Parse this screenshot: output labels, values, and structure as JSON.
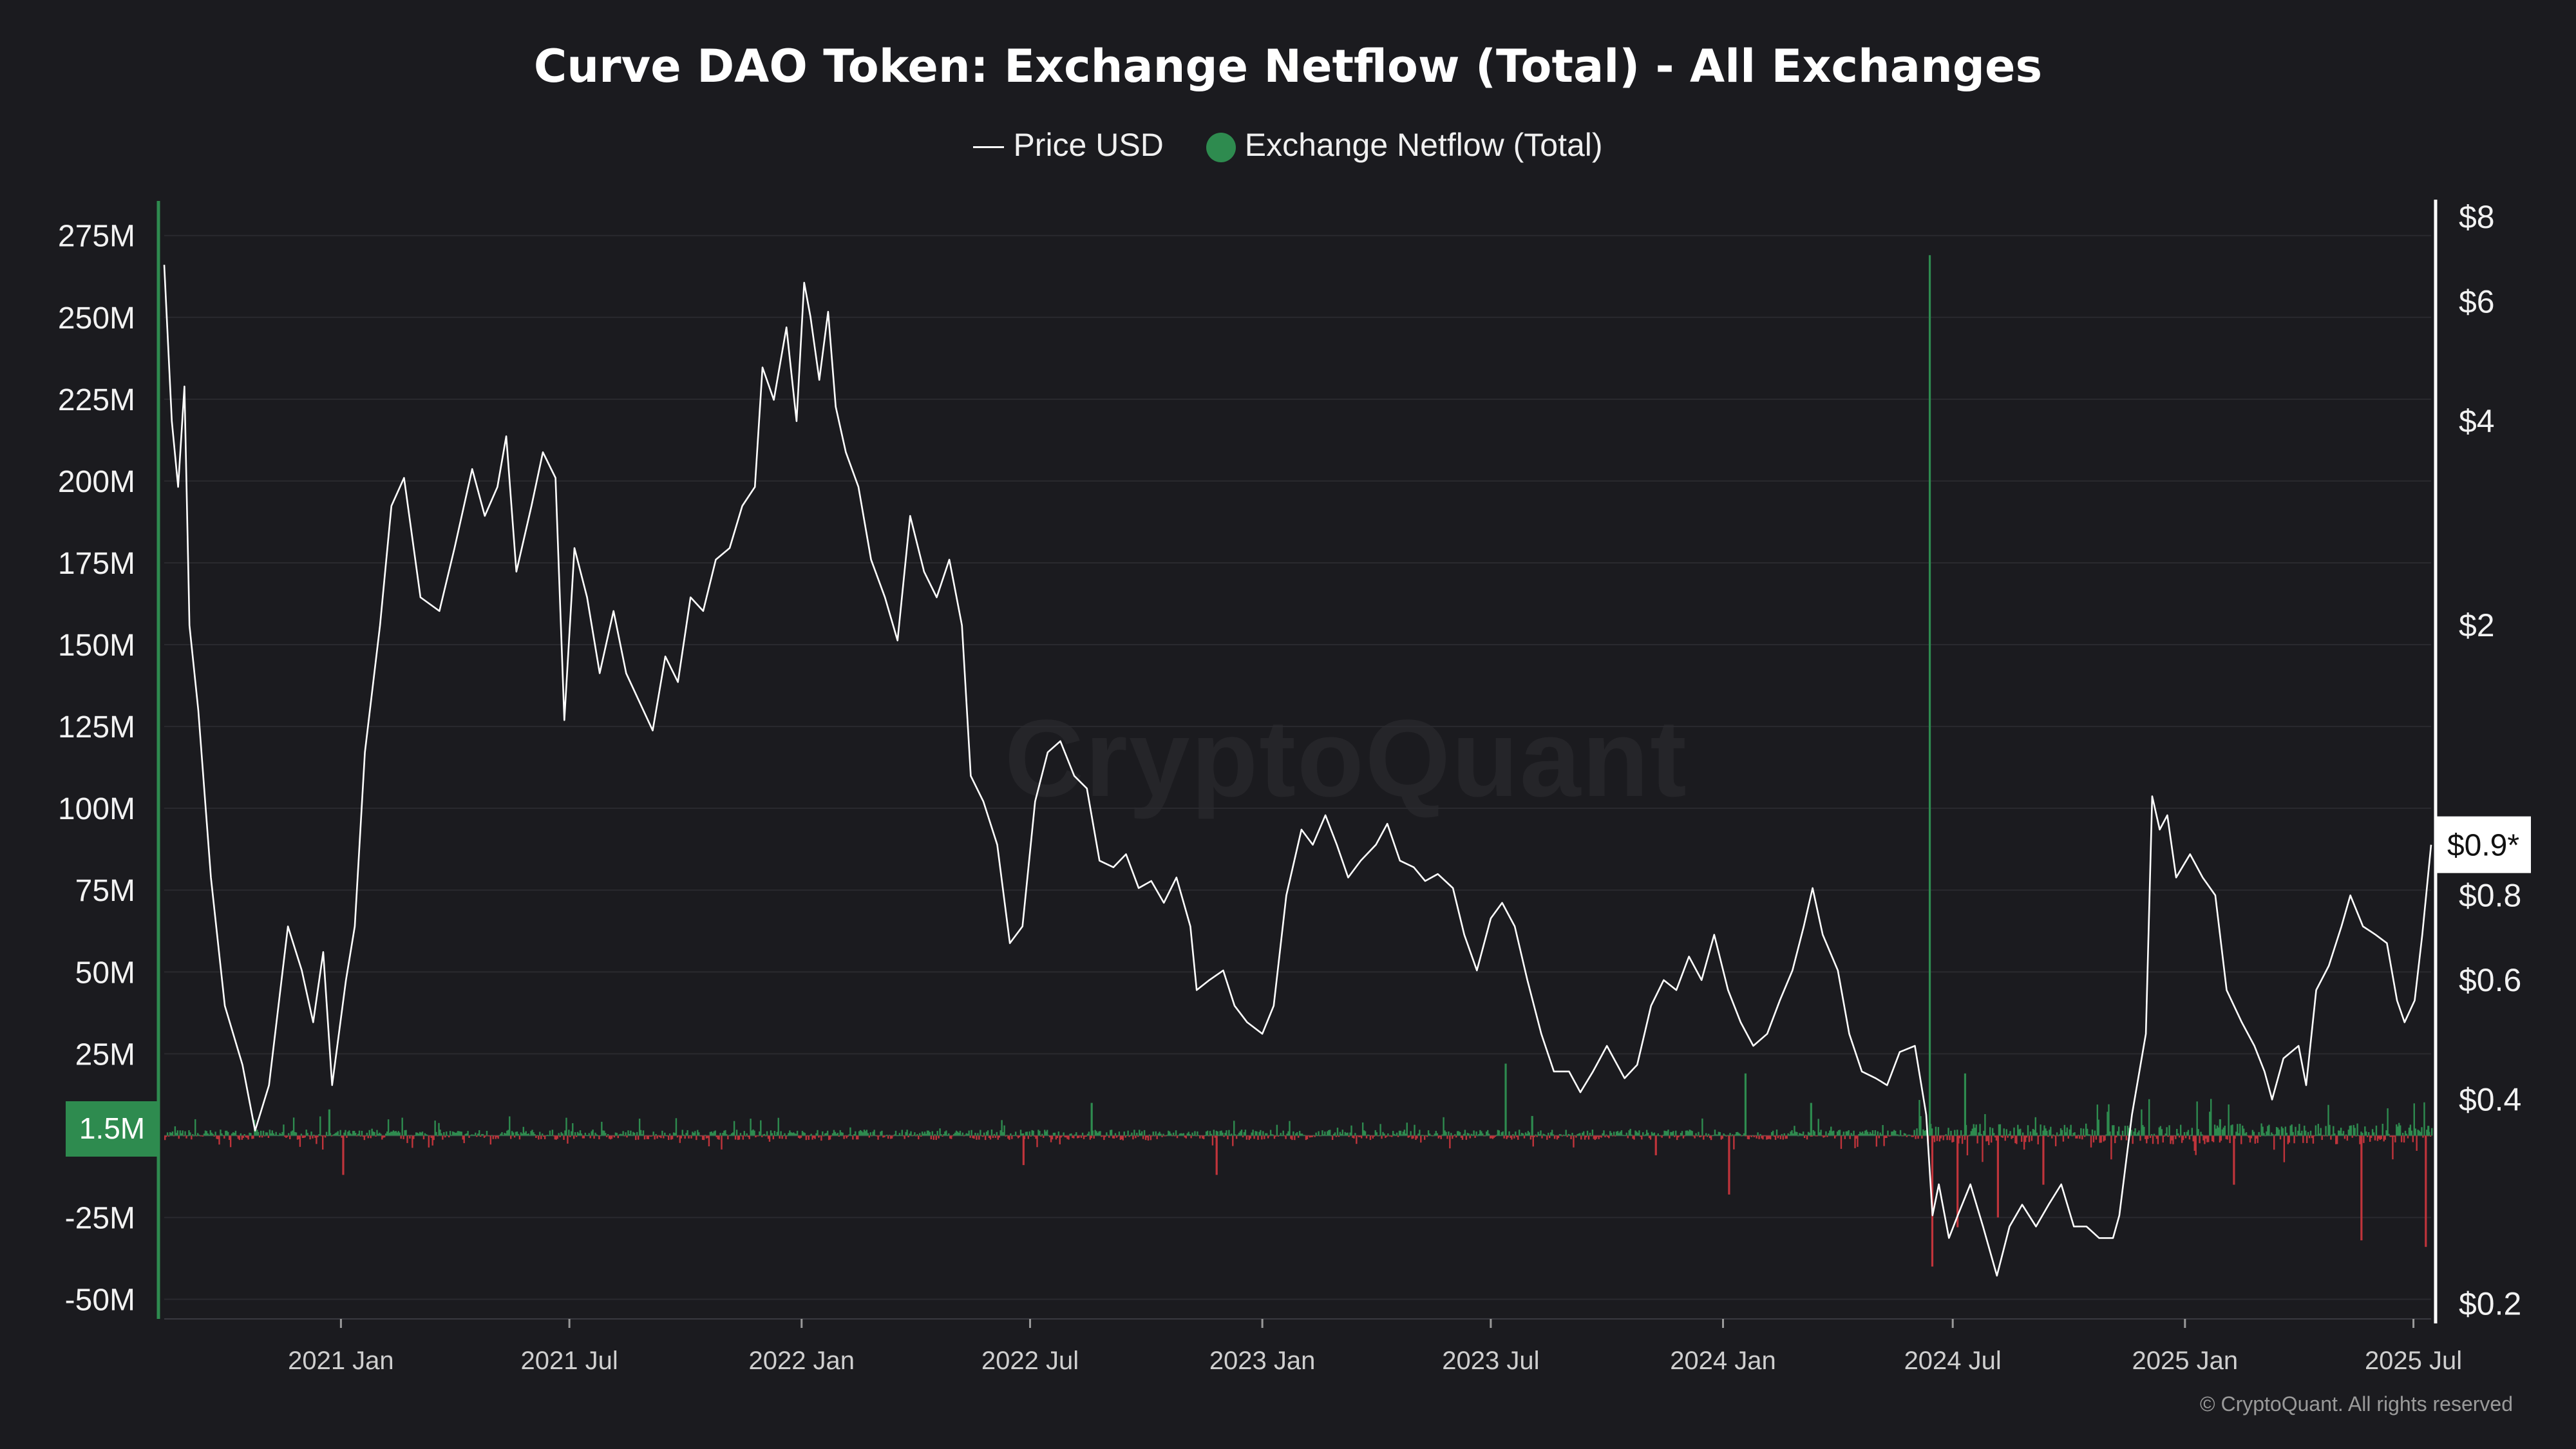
{
  "chart_data": {
    "type": "bar",
    "title": "Curve DAO Token: Exchange Netflow (Total) - All Exchanges",
    "legend": {
      "placement": "top-center",
      "items": [
        "Price USD",
        "Exchange Netflow (Total)"
      ]
    },
    "x_axis": {
      "ticks": [
        "2021 Jan",
        "2021 Jul",
        "2022 Jan",
        "2022 Jul",
        "2023 Jan",
        "2023 Jul",
        "2024 Jan",
        "2024 Jul",
        "2025 Jan",
        "2025 Jul"
      ],
      "range": [
        "2020-08-14",
        "2025-07-15"
      ]
    },
    "y_left": {
      "label": "",
      "ticks": [
        "275M",
        "250M",
        "225M",
        "200M",
        "175M",
        "150M",
        "125M",
        "100M",
        "75M",
        "50M",
        "25M",
        "-25M",
        "-50M"
      ],
      "range": [
        -56000000,
        284000000
      ],
      "current_label": "1.5M"
    },
    "y_right": {
      "label": "",
      "scale": "log",
      "ticks": [
        "$8",
        "$6",
        "$4",
        "$2",
        "$0.8",
        "$0.6",
        "$0.4",
        "$0.2"
      ],
      "range": [
        0.19,
        8.3
      ],
      "current_label": "$0.9*"
    },
    "grid": true,
    "series": [
      {
        "name": "Price USD",
        "type": "line",
        "color": "#ffffff",
        "points": [
          [
            "2020-08-14",
            6.8
          ],
          [
            "2020-08-20",
            4.0
          ],
          [
            "2020-08-25",
            3.2
          ],
          [
            "2020-08-30",
            4.5
          ],
          [
            "2020-09-03",
            2.0
          ],
          [
            "2020-09-10",
            1.5
          ],
          [
            "2020-09-20",
            0.85
          ],
          [
            "2020-10-01",
            0.55
          ],
          [
            "2020-10-15",
            0.45
          ],
          [
            "2020-10-25",
            0.36
          ],
          [
            "2020-11-05",
            0.42
          ],
          [
            "2020-11-20",
            0.72
          ],
          [
            "2020-12-01",
            0.62
          ],
          [
            "2020-12-10",
            0.52
          ],
          [
            "2020-12-18",
            0.66
          ],
          [
            "2020-12-25",
            0.42
          ],
          [
            "2021-01-05",
            0.6
          ],
          [
            "2021-01-12",
            0.72
          ],
          [
            "2021-01-20",
            1.3
          ],
          [
            "2021-02-01",
            2.0
          ],
          [
            "2021-02-10",
            3.0
          ],
          [
            "2021-02-20",
            3.3
          ],
          [
            "2021-03-05",
            2.2
          ],
          [
            "2021-03-20",
            2.1
          ],
          [
            "2021-04-01",
            2.6
          ],
          [
            "2021-04-15",
            3.4
          ],
          [
            "2021-04-25",
            2.9
          ],
          [
            "2021-05-05",
            3.2
          ],
          [
            "2021-05-12",
            3.8
          ],
          [
            "2021-05-20",
            2.4
          ],
          [
            "2021-06-01",
            3.0
          ],
          [
            "2021-06-10",
            3.6
          ],
          [
            "2021-06-20",
            3.3
          ],
          [
            "2021-06-27",
            1.45
          ],
          [
            "2021-07-05",
            2.6
          ],
          [
            "2021-07-15",
            2.2
          ],
          [
            "2021-07-25",
            1.7
          ],
          [
            "2021-08-05",
            2.1
          ],
          [
            "2021-08-15",
            1.7
          ],
          [
            "2021-08-25",
            1.55
          ],
          [
            "2021-09-05",
            1.4
          ],
          [
            "2021-09-15",
            1.8
          ],
          [
            "2021-09-25",
            1.65
          ],
          [
            "2021-10-05",
            2.2
          ],
          [
            "2021-10-15",
            2.1
          ],
          [
            "2021-10-25",
            2.5
          ],
          [
            "2021-11-05",
            2.6
          ],
          [
            "2021-11-15",
            3.0
          ],
          [
            "2021-11-25",
            3.2
          ],
          [
            "2021-12-01",
            4.8
          ],
          [
            "2021-12-10",
            4.3
          ],
          [
            "2021-12-20",
            5.5
          ],
          [
            "2021-12-28",
            4.0
          ],
          [
            "2022-01-03",
            6.4
          ],
          [
            "2022-01-08",
            5.7
          ],
          [
            "2022-01-15",
            4.6
          ],
          [
            "2022-01-22",
            5.8
          ],
          [
            "2022-01-28",
            4.2
          ],
          [
            "2022-02-05",
            3.6
          ],
          [
            "2022-02-15",
            3.2
          ],
          [
            "2022-02-25",
            2.5
          ],
          [
            "2022-03-08",
            2.2
          ],
          [
            "2022-03-18",
            1.9
          ],
          [
            "2022-03-28",
            2.9
          ],
          [
            "2022-04-08",
            2.4
          ],
          [
            "2022-04-18",
            2.2
          ],
          [
            "2022-04-28",
            2.5
          ],
          [
            "2022-05-08",
            2.0
          ],
          [
            "2022-05-15",
            1.2
          ],
          [
            "2022-05-25",
            1.1
          ],
          [
            "2022-06-05",
            0.95
          ],
          [
            "2022-06-15",
            0.68
          ],
          [
            "2022-06-25",
            0.72
          ],
          [
            "2022-07-05",
            1.1
          ],
          [
            "2022-07-15",
            1.3
          ],
          [
            "2022-07-25",
            1.35
          ],
          [
            "2022-08-05",
            1.2
          ],
          [
            "2022-08-15",
            1.15
          ],
          [
            "2022-08-25",
            0.9
          ],
          [
            "2022-09-05",
            0.88
          ],
          [
            "2022-09-15",
            0.92
          ],
          [
            "2022-09-25",
            0.82
          ],
          [
            "2022-10-05",
            0.84
          ],
          [
            "2022-10-15",
            0.78
          ],
          [
            "2022-10-25",
            0.85
          ],
          [
            "2022-11-05",
            0.72
          ],
          [
            "2022-11-10",
            0.58
          ],
          [
            "2022-11-20",
            0.6
          ],
          [
            "2022-12-01",
            0.62
          ],
          [
            "2022-12-10",
            0.55
          ],
          [
            "2022-12-20",
            0.52
          ],
          [
            "2023-01-01",
            0.5
          ],
          [
            "2023-01-10",
            0.55
          ],
          [
            "2023-01-20",
            0.8
          ],
          [
            "2023-02-01",
            1.0
          ],
          [
            "2023-02-10",
            0.95
          ],
          [
            "2023-02-20",
            1.05
          ],
          [
            "2023-03-01",
            0.95
          ],
          [
            "2023-03-10",
            0.85
          ],
          [
            "2023-03-20",
            0.9
          ],
          [
            "2023-04-01",
            0.95
          ],
          [
            "2023-04-10",
            1.02
          ],
          [
            "2023-04-20",
            0.9
          ],
          [
            "2023-05-01",
            0.88
          ],
          [
            "2023-05-10",
            0.84
          ],
          [
            "2023-05-20",
            0.86
          ],
          [
            "2023-06-01",
            0.82
          ],
          [
            "2023-06-10",
            0.7
          ],
          [
            "2023-06-20",
            0.62
          ],
          [
            "2023-07-01",
            0.74
          ],
          [
            "2023-07-10",
            0.78
          ],
          [
            "2023-07-20",
            0.72
          ],
          [
            "2023-07-30",
            0.6
          ],
          [
            "2023-08-10",
            0.5
          ],
          [
            "2023-08-20",
            0.44
          ],
          [
            "2023-09-01",
            0.44
          ],
          [
            "2023-09-10",
            0.41
          ],
          [
            "2023-09-20",
            0.44
          ],
          [
            "2023-10-01",
            0.48
          ],
          [
            "2023-10-15",
            0.43
          ],
          [
            "2023-10-25",
            0.45
          ],
          [
            "2023-11-05",
            0.55
          ],
          [
            "2023-11-15",
            0.6
          ],
          [
            "2023-11-25",
            0.58
          ],
          [
            "2023-12-05",
            0.65
          ],
          [
            "2023-12-15",
            0.6
          ],
          [
            "2023-12-25",
            0.7
          ],
          [
            "2024-01-05",
            0.58
          ],
          [
            "2024-01-15",
            0.52
          ],
          [
            "2024-01-25",
            0.48
          ],
          [
            "2024-02-05",
            0.5
          ],
          [
            "2024-02-15",
            0.56
          ],
          [
            "2024-02-25",
            0.62
          ],
          [
            "2024-03-05",
            0.72
          ],
          [
            "2024-03-12",
            0.82
          ],
          [
            "2024-03-20",
            0.7
          ],
          [
            "2024-04-01",
            0.62
          ],
          [
            "2024-04-10",
            0.5
          ],
          [
            "2024-04-20",
            0.44
          ],
          [
            "2024-05-01",
            0.43
          ],
          [
            "2024-05-10",
            0.42
          ],
          [
            "2024-05-20",
            0.47
          ],
          [
            "2024-06-01",
            0.48
          ],
          [
            "2024-06-10",
            0.38
          ],
          [
            "2024-06-15",
            0.27
          ],
          [
            "2024-06-20",
            0.3
          ],
          [
            "2024-06-28",
            0.25
          ],
          [
            "2024-07-05",
            0.27
          ],
          [
            "2024-07-15",
            0.3
          ],
          [
            "2024-07-25",
            0.26
          ],
          [
            "2024-08-05",
            0.22
          ],
          [
            "2024-08-15",
            0.26
          ],
          [
            "2024-08-25",
            0.28
          ],
          [
            "2024-09-05",
            0.26
          ],
          [
            "2024-09-15",
            0.28
          ],
          [
            "2024-09-25",
            0.3
          ],
          [
            "2024-10-05",
            0.26
          ],
          [
            "2024-10-15",
            0.26
          ],
          [
            "2024-10-25",
            0.25
          ],
          [
            "2024-11-05",
            0.25
          ],
          [
            "2024-11-10",
            0.27
          ],
          [
            "2024-11-20",
            0.38
          ],
          [
            "2024-12-01",
            0.5
          ],
          [
            "2024-12-06",
            1.12
          ],
          [
            "2024-12-12",
            1.0
          ],
          [
            "2024-12-18",
            1.05
          ],
          [
            "2024-12-25",
            0.85
          ],
          [
            "2025-01-05",
            0.92
          ],
          [
            "2025-01-15",
            0.85
          ],
          [
            "2025-01-25",
            0.8
          ],
          [
            "2025-02-03",
            0.58
          ],
          [
            "2025-02-15",
            0.52
          ],
          [
            "2025-02-25",
            0.48
          ],
          [
            "2025-03-05",
            0.44
          ],
          [
            "2025-03-11",
            0.4
          ],
          [
            "2025-03-20",
            0.46
          ],
          [
            "2025-04-01",
            0.48
          ],
          [
            "2025-04-07",
            0.42
          ],
          [
            "2025-04-15",
            0.58
          ],
          [
            "2025-04-25",
            0.63
          ],
          [
            "2025-05-05",
            0.72
          ],
          [
            "2025-05-12",
            0.8
          ],
          [
            "2025-05-22",
            0.72
          ],
          [
            "2025-06-01",
            0.7
          ],
          [
            "2025-06-10",
            0.68
          ],
          [
            "2025-06-18",
            0.56
          ],
          [
            "2025-06-24",
            0.52
          ],
          [
            "2025-07-02",
            0.56
          ],
          [
            "2025-07-08",
            0.7
          ],
          [
            "2025-07-15",
            0.95
          ]
        ]
      },
      {
        "name": "Exchange Netflow (Total)",
        "type": "bar",
        "colors": {
          "positive": "#2e8b4f",
          "negative": "#c0343b"
        },
        "notable_points": [
          [
            "2020-12-22",
            8000000
          ],
          [
            "2021-01-02",
            -12000000
          ],
          [
            "2022-06-25",
            -9000000
          ],
          [
            "2022-08-18",
            10000000
          ],
          [
            "2022-11-25",
            -12000000
          ],
          [
            "2023-07-12",
            22000000
          ],
          [
            "2023-08-02",
            6000000
          ],
          [
            "2023-11-08",
            -6000000
          ],
          [
            "2024-01-05",
            -18000000
          ],
          [
            "2024-01-18",
            19000000
          ],
          [
            "2024-03-10",
            10000000
          ],
          [
            "2024-06-12",
            269000000
          ],
          [
            "2024-06-14",
            -40000000
          ],
          [
            "2024-07-04",
            -28000000
          ],
          [
            "2024-07-10",
            19000000
          ],
          [
            "2024-08-05",
            -25000000
          ],
          [
            "2024-09-10",
            -15000000
          ],
          [
            "2025-01-28",
            5000000
          ],
          [
            "2025-02-08",
            -15000000
          ],
          [
            "2025-05-20",
            -32000000
          ],
          [
            "2025-07-10",
            -34000000
          ],
          [
            "2025-07-12",
            3000000
          ]
        ]
      }
    ]
  },
  "footer": {
    "copyright": "© CryptoQuant. All rights reserved"
  },
  "watermark": "CryptoQuant",
  "colors": {
    "background": "#1b1b1f",
    "grid": "#2a2a2f",
    "left_axis": "#2e8b4f",
    "right_axis": "#ffffff"
  }
}
